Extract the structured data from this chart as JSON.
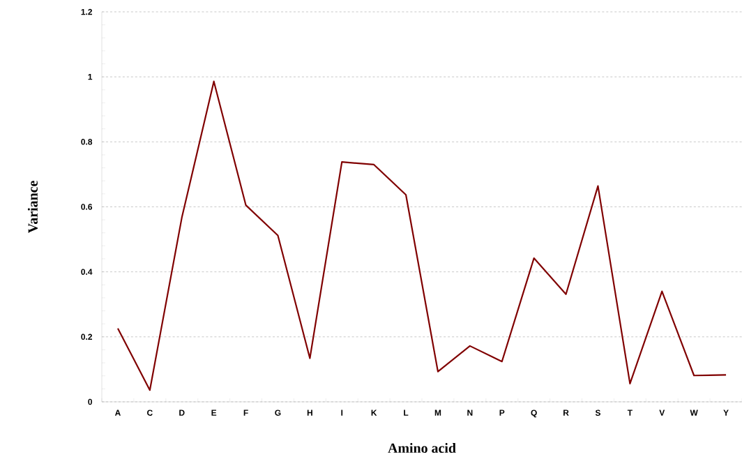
{
  "chart_data": {
    "type": "line",
    "xlabel": "Amino acid",
    "ylabel": "Variance",
    "categories": [
      "A",
      "C",
      "D",
      "E",
      "F",
      "G",
      "H",
      "I",
      "K",
      "L",
      "M",
      "N",
      "P",
      "Q",
      "R",
      "S",
      "T",
      "V",
      "W",
      "Y"
    ],
    "values": [
      0.226,
      0.036,
      0.567,
      0.986,
      0.605,
      0.512,
      0.134,
      0.738,
      0.73,
      0.637,
      0.093,
      0.172,
      0.124,
      0.442,
      0.331,
      0.664,
      0.056,
      0.34,
      0.081,
      0.083
    ],
    "color": "#800000",
    "ylim": [
      0,
      1.2
    ],
    "yticks": [
      0,
      0.2,
      0.4,
      0.6,
      0.8,
      1,
      1.2
    ],
    "grid": "y",
    "marker": "none",
    "line_style": "solid"
  }
}
